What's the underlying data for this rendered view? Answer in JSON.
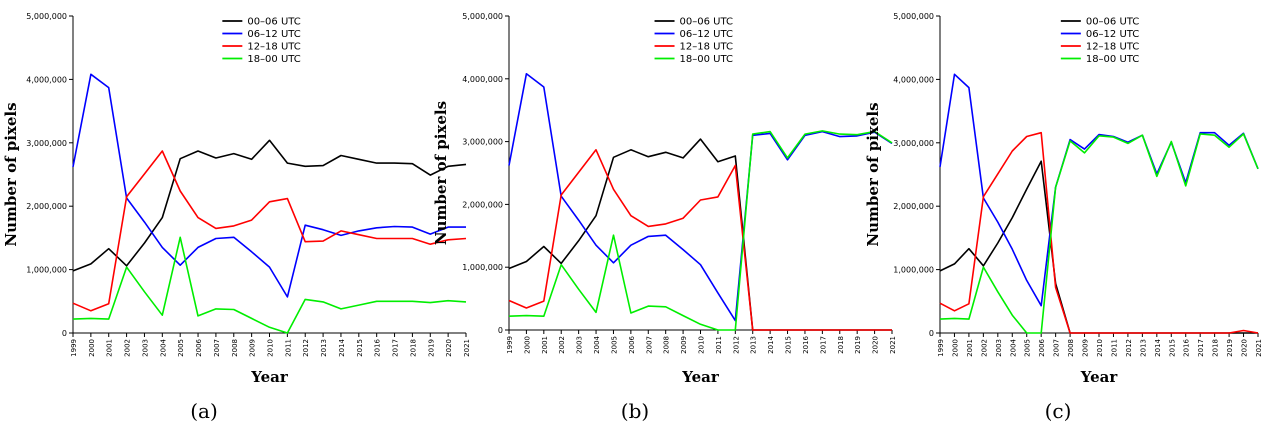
{
  "chart_data": [
    {
      "type": "line",
      "panel_label": "(a)",
      "xlabel": "Year",
      "ylabel": "Number of pixels",
      "ylim": [
        0,
        5000000
      ],
      "yticks": [
        "0",
        "1,000,000",
        "2,000,000",
        "3,000,000",
        "4,000,000",
        "5,000,000"
      ],
      "x": [
        1999,
        2000,
        2001,
        2002,
        2003,
        2004,
        2005,
        2006,
        2007,
        2008,
        2009,
        2010,
        2011,
        2012,
        2013,
        2014,
        2015,
        2016,
        2017,
        2018,
        2019,
        2020,
        2021
      ],
      "legend_position": "top-center",
      "series": [
        {
          "name": "00–06 UTC",
          "color": "#000000",
          "values": [
            980000,
            1090000,
            1330000,
            1060000,
            1420000,
            1820000,
            2750000,
            2870000,
            2760000,
            2830000,
            2740000,
            3040000,
            2680000,
            2630000,
            2640000,
            2800000,
            2740000,
            2680000,
            2680000,
            2670000,
            2490000,
            2630000,
            2660000
          ]
        },
        {
          "name": "06–12 UTC",
          "color": "#0000ff",
          "values": [
            2620000,
            4080000,
            3870000,
            2130000,
            1750000,
            1350000,
            1070000,
            1350000,
            1490000,
            1510000,
            1280000,
            1040000,
            570000,
            1700000,
            1630000,
            1540000,
            1610000,
            1660000,
            1680000,
            1670000,
            1560000,
            1670000,
            1670000
          ]
        },
        {
          "name": "12–18 UTC",
          "color": "#ff0000",
          "values": [
            470000,
            350000,
            460000,
            2150000,
            2510000,
            2870000,
            2240000,
            1820000,
            1650000,
            1690000,
            1780000,
            2070000,
            2120000,
            1440000,
            1450000,
            1610000,
            1550000,
            1490000,
            1490000,
            1490000,
            1400000,
            1470000,
            1490000
          ]
        },
        {
          "name": "18–00 UTC",
          "color": "#00ee00",
          "values": [
            220000,
            230000,
            220000,
            1040000,
            650000,
            280000,
            1510000,
            270000,
            380000,
            370000,
            230000,
            90000,
            0,
            530000,
            490000,
            380000,
            440000,
            500000,
            500000,
            500000,
            480000,
            510000,
            490000
          ]
        }
      ]
    },
    {
      "type": "line",
      "panel_label": "(b)",
      "xlabel": "Year",
      "ylabel": "Number of pixels",
      "ylim": [
        0,
        5000000
      ],
      "yticks": [
        "0",
        "1,000,000",
        "2,000,000",
        "3,000,000",
        "4,000,000",
        "5,000,000"
      ],
      "x": [
        1999,
        2000,
        2001,
        2002,
        2003,
        2004,
        2005,
        2006,
        2007,
        2008,
        2009,
        2010,
        2011,
        2012,
        2013,
        2014,
        2015,
        2016,
        2017,
        2018,
        2019,
        2020,
        2021
      ],
      "legend_position": "top-center",
      "series": [
        {
          "name": "00–06 UTC",
          "color": "#000000",
          "values": [
            980000,
            1090000,
            1330000,
            1060000,
            1420000,
            1820000,
            2750000,
            2870000,
            2760000,
            2830000,
            2740000,
            3040000,
            2680000,
            2770000,
            0,
            0,
            0,
            0,
            0,
            0,
            0,
            0,
            0
          ]
        },
        {
          "name": "06–12 UTC",
          "color": "#0000ff",
          "values": [
            2620000,
            4080000,
            3870000,
            2130000,
            1750000,
            1350000,
            1070000,
            1350000,
            1490000,
            1510000,
            1280000,
            1040000,
            590000,
            150000,
            3100000,
            3130000,
            2710000,
            3100000,
            3160000,
            3080000,
            3090000,
            3150000,
            2970000
          ]
        },
        {
          "name": "12–18 UTC",
          "color": "#ff0000",
          "values": [
            470000,
            350000,
            460000,
            2150000,
            2510000,
            2870000,
            2240000,
            1820000,
            1650000,
            1690000,
            1780000,
            2070000,
            2120000,
            2620000,
            0,
            0,
            0,
            0,
            0,
            0,
            0,
            0,
            0
          ]
        },
        {
          "name": "18–00 UTC",
          "color": "#00ee00",
          "values": [
            220000,
            230000,
            220000,
            1040000,
            650000,
            280000,
            1510000,
            270000,
            380000,
            370000,
            230000,
            90000,
            0,
            0,
            3120000,
            3160000,
            2740000,
            3120000,
            3170000,
            3120000,
            3110000,
            3160000,
            2980000
          ]
        }
      ]
    },
    {
      "type": "line",
      "panel_label": "(c)",
      "xlabel": "Year",
      "ylabel": "Number of pixels",
      "ylim": [
        0,
        5000000
      ],
      "yticks": [
        "0",
        "1,000,000",
        "2,000,000",
        "3,000,000",
        "4,000,000",
        "5,000,000"
      ],
      "x": [
        1999,
        2000,
        2001,
        2002,
        2003,
        2004,
        2005,
        2006,
        2007,
        2008,
        2009,
        2010,
        2011,
        2012,
        2013,
        2014,
        2015,
        2016,
        2017,
        2018,
        2019,
        2020,
        2021
      ],
      "legend_position": "top-center",
      "series": [
        {
          "name": "00–06 UTC",
          "color": "#000000",
          "values": [
            980000,
            1090000,
            1330000,
            1060000,
            1420000,
            1820000,
            2270000,
            2710000,
            780000,
            0,
            0,
            0,
            0,
            0,
            0,
            0,
            0,
            0,
            0,
            0,
            0,
            0,
            0
          ]
        },
        {
          "name": "06–12 UTC",
          "color": "#0000ff",
          "values": [
            2620000,
            4080000,
            3870000,
            2130000,
            1750000,
            1320000,
            830000,
            430000,
            2300000,
            3050000,
            2900000,
            3130000,
            3100000,
            3010000,
            3120000,
            2510000,
            3010000,
            2370000,
            3160000,
            3160000,
            2960000,
            3150000,
            2590000
          ]
        },
        {
          "name": "12–18 UTC",
          "color": "#ff0000",
          "values": [
            470000,
            350000,
            460000,
            2150000,
            2510000,
            2870000,
            3100000,
            3160000,
            720000,
            0,
            0,
            0,
            0,
            0,
            0,
            0,
            0,
            0,
            0,
            0,
            0,
            40000,
            0
          ]
        },
        {
          "name": "18–00 UTC",
          "color": "#00ee00",
          "values": [
            220000,
            230000,
            220000,
            1040000,
            650000,
            280000,
            0,
            0,
            2300000,
            3030000,
            2840000,
            3110000,
            3090000,
            2990000,
            3120000,
            2470000,
            3020000,
            2320000,
            3140000,
            3120000,
            2930000,
            3140000,
            2590000
          ]
        }
      ]
    }
  ]
}
